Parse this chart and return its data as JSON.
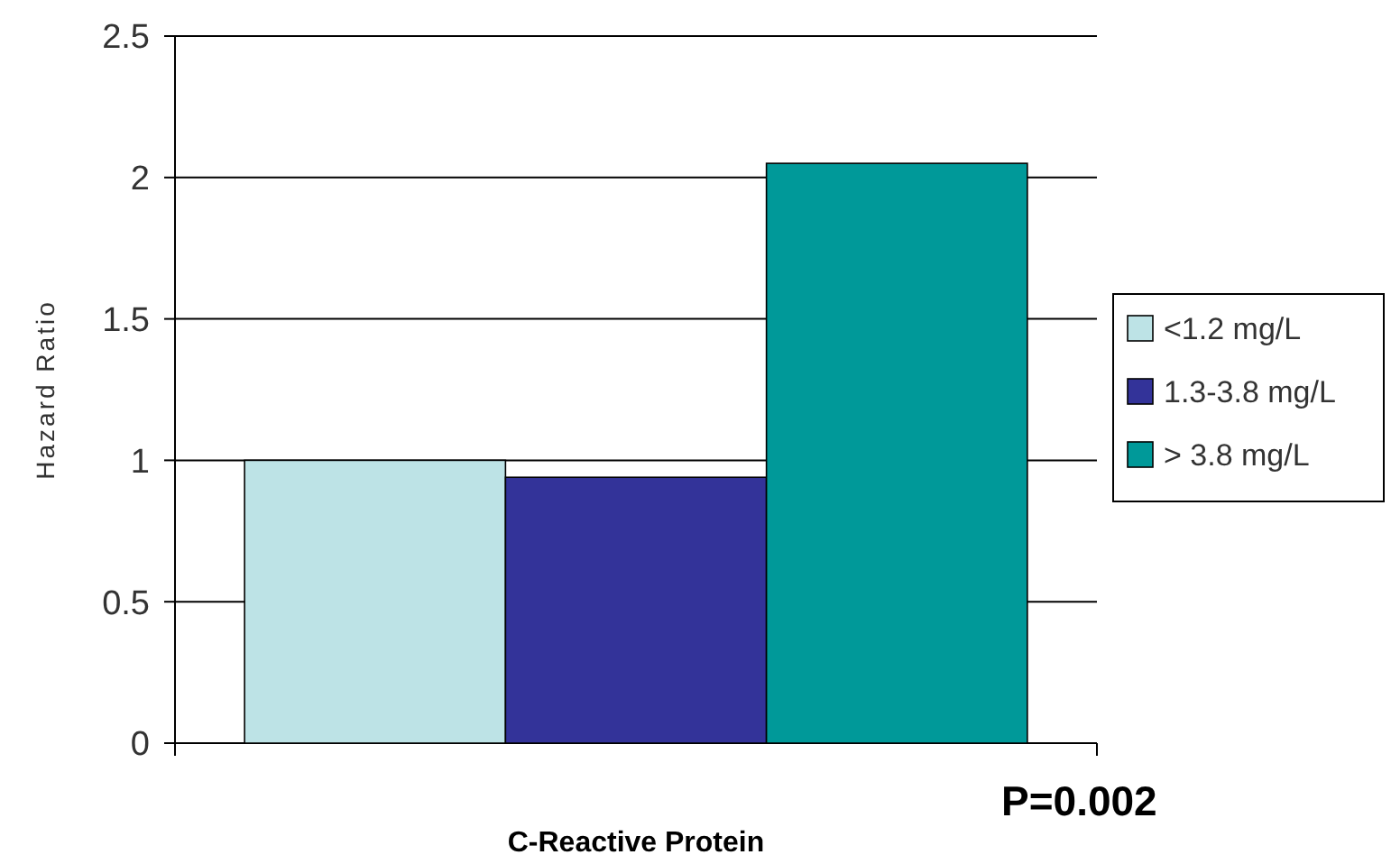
{
  "chart_data": {
    "type": "bar",
    "categories": [
      null
    ],
    "series": [
      {
        "name": "<1.2 mg/L",
        "color": "#bde3e6",
        "values": [
          1.0
        ]
      },
      {
        "name": "1.3-3.8 mg/L",
        "color": "#333399",
        "values": [
          0.94
        ]
      },
      {
        "name": "> 3.8 mg/L",
        "color": "#009999",
        "values": [
          2.05
        ]
      }
    ],
    "xlabel": "C-Reactive Protein",
    "ylabel": "Hazard Ratio",
    "annotations": [
      "P=0.002"
    ],
    "ylim": [
      0,
      2.5
    ],
    "yticks": [
      0,
      0.5,
      1,
      1.5,
      2,
      2.5
    ],
    "grid": "y",
    "legend": "right"
  }
}
